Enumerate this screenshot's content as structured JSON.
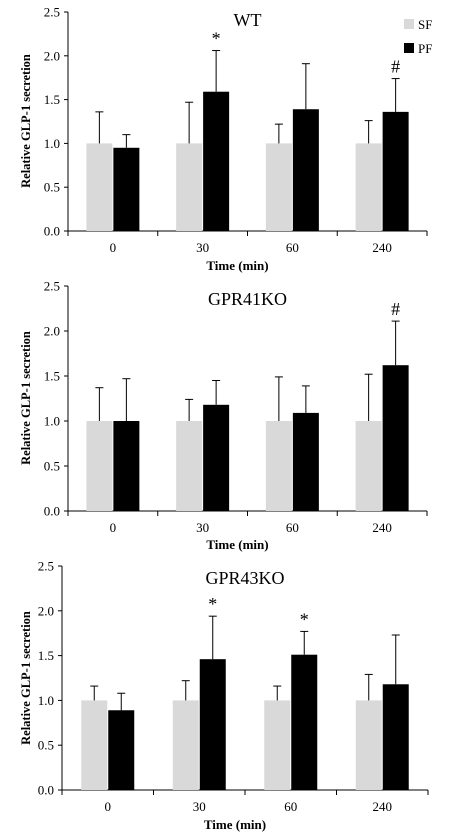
{
  "chart_data": [
    {
      "type": "bar",
      "title": "WT",
      "xlabel": "Time (min)",
      "ylabel": "Relative GLP-1 secretion",
      "categories": [
        "0",
        "30",
        "60",
        "240"
      ],
      "ylim": [
        0,
        2.5
      ],
      "yticks": [
        "0.0",
        "0.5",
        "1.0",
        "1.5",
        "2.0",
        "2.5"
      ],
      "legend": {
        "placement": "top-right",
        "entries": [
          "SF",
          "PF"
        ]
      },
      "series": [
        {
          "name": "SF",
          "color": "#d9d9d9",
          "values": [
            1.0,
            1.0,
            1.0,
            1.0
          ],
          "errors": [
            0.36,
            0.47,
            0.22,
            0.26
          ]
        },
        {
          "name": "PF",
          "color": "#000000",
          "values": [
            0.95,
            1.59,
            1.39,
            1.36
          ],
          "errors": [
            0.15,
            0.47,
            0.52,
            0.38
          ]
        }
      ],
      "annotations": [
        {
          "category": "30",
          "series": "PF",
          "text": "*"
        },
        {
          "category": "240",
          "series": "PF",
          "text": "#"
        }
      ]
    },
    {
      "type": "bar",
      "title": "GPR41KO",
      "xlabel": "Time (min)",
      "ylabel": "Relative GLP-1 secretion",
      "categories": [
        "0",
        "30",
        "60",
        "240"
      ],
      "ylim": [
        0,
        2.5
      ],
      "yticks": [
        "0.0",
        "0.5",
        "1.0",
        "1.5",
        "2.0",
        "2.5"
      ],
      "series": [
        {
          "name": "SF",
          "color": "#d9d9d9",
          "values": [
            1.0,
            1.0,
            1.0,
            1.0
          ],
          "errors": [
            0.37,
            0.24,
            0.49,
            0.52
          ]
        },
        {
          "name": "PF",
          "color": "#000000",
          "values": [
            1.0,
            1.18,
            1.09,
            1.62
          ],
          "errors": [
            0.47,
            0.27,
            0.3,
            0.49
          ]
        }
      ],
      "annotations": [
        {
          "category": "240",
          "series": "PF",
          "text": "#"
        }
      ]
    },
    {
      "type": "bar",
      "title": "GPR43KO",
      "xlabel": "Time (min)",
      "ylabel": "Relative GLP-1 secretion",
      "categories": [
        "0",
        "30",
        "60",
        "240"
      ],
      "ylim": [
        0,
        2.5
      ],
      "yticks": [
        "0.0",
        "0.5",
        "1.0",
        "1.5",
        "2.0",
        "2.5"
      ],
      "series": [
        {
          "name": "SF",
          "color": "#d9d9d9",
          "values": [
            1.0,
            1.0,
            1.0,
            1.0
          ],
          "errors": [
            0.16,
            0.22,
            0.16,
            0.29
          ]
        },
        {
          "name": "PF",
          "color": "#000000",
          "values": [
            0.89,
            1.46,
            1.51,
            1.18
          ],
          "errors": [
            0.19,
            0.48,
            0.26,
            0.55
          ]
        }
      ],
      "annotations": [
        {
          "category": "30",
          "series": "PF",
          "text": "*"
        },
        {
          "category": "60",
          "series": "PF",
          "text": "*"
        }
      ]
    }
  ]
}
